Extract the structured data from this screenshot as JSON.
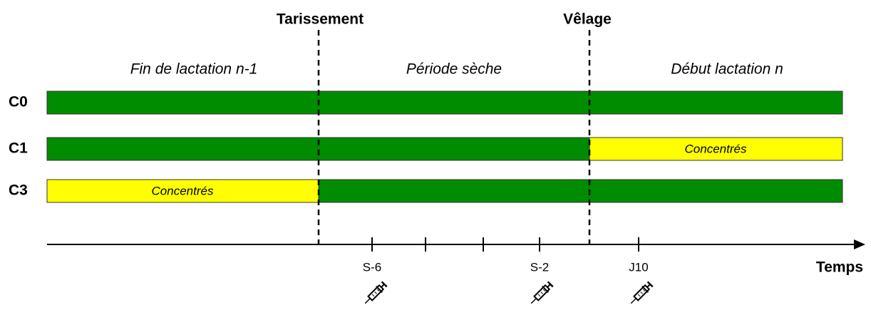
{
  "markers": [
    {
      "label": "Tarissement"
    },
    {
      "label": "Vêlage"
    }
  ],
  "periods": [
    {
      "label": "Fin de lactation n-1"
    },
    {
      "label": "Période sèche"
    },
    {
      "label": "Début lactation n"
    }
  ],
  "rows": [
    {
      "label": "C0",
      "segments": [
        {
          "color": "#008c00"
        }
      ]
    },
    {
      "label": "C1",
      "segments": [
        {
          "color": "#008c00"
        },
        {
          "color": "#ffff00",
          "label": "Concentrés"
        }
      ]
    },
    {
      "label": "C3",
      "segments": [
        {
          "color": "#ffff00",
          "label": "Concentrés"
        },
        {
          "color": "#008c00"
        }
      ]
    }
  ],
  "axis": {
    "label": "Temps",
    "ticks": [
      "S-6",
      "S-2",
      "J10"
    ]
  }
}
